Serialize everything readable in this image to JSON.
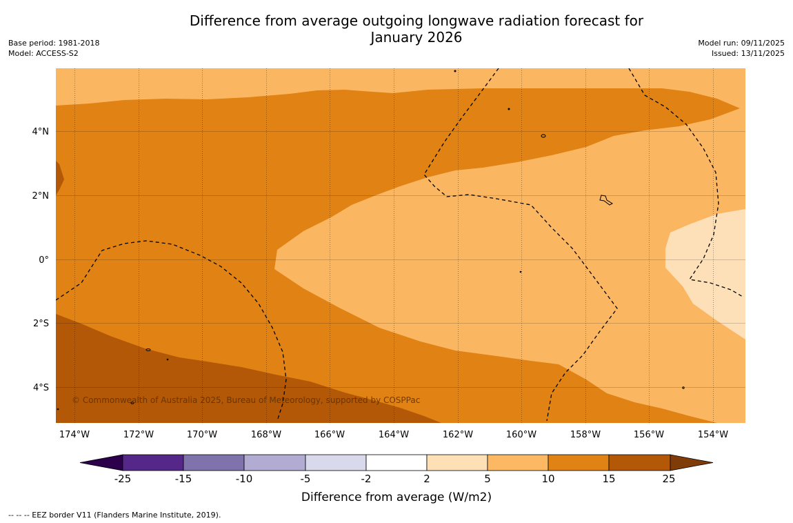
{
  "title": {
    "line1": "Difference from average outgoing longwave radiation forecast for",
    "line2": "January 2026"
  },
  "meta_left": {
    "base_period": "Base period: 1981-2018",
    "model": "Model: ACCESS-S2"
  },
  "meta_right": {
    "model_run": "Model run: 09/11/2025",
    "issued": "Issued: 13/11/2025"
  },
  "map": {
    "lat_labels": [
      "4°N",
      "2°N",
      "0°",
      "2°S",
      "4°S"
    ],
    "lon_labels": [
      "174°W",
      "172°W",
      "170°W",
      "168°W",
      "166°W",
      "164°W",
      "162°W",
      "160°W",
      "158°W",
      "156°W",
      "154°W"
    ],
    "copyright": "© Commonwealth of Australia 2025, Bureau of Meteorology, supported by COSPPac",
    "fill_colors": {
      "c_2_5": "#fde0b8",
      "c_5_10": "#fbb661",
      "c_10_15": "#e08214",
      "c_15_25": "#b35806"
    }
  },
  "colorbar": {
    "label": "Difference from average (W/m2)",
    "tick_labels": [
      "-25",
      "-15",
      "-10",
      "-5",
      "-2",
      "2",
      "5",
      "10",
      "15",
      "25"
    ],
    "colors": [
      "#542788",
      "#8073ac",
      "#b2abd2",
      "#d8daeb",
      "#ffffff",
      "#fee0b6",
      "#fdb863",
      "#e08214",
      "#b35806"
    ],
    "under_color": "#2d004b",
    "over_color": "#7f3b08"
  },
  "footer": "--  --  -- EEZ border V11 (Flanders Marine Institute, 2019)."
}
